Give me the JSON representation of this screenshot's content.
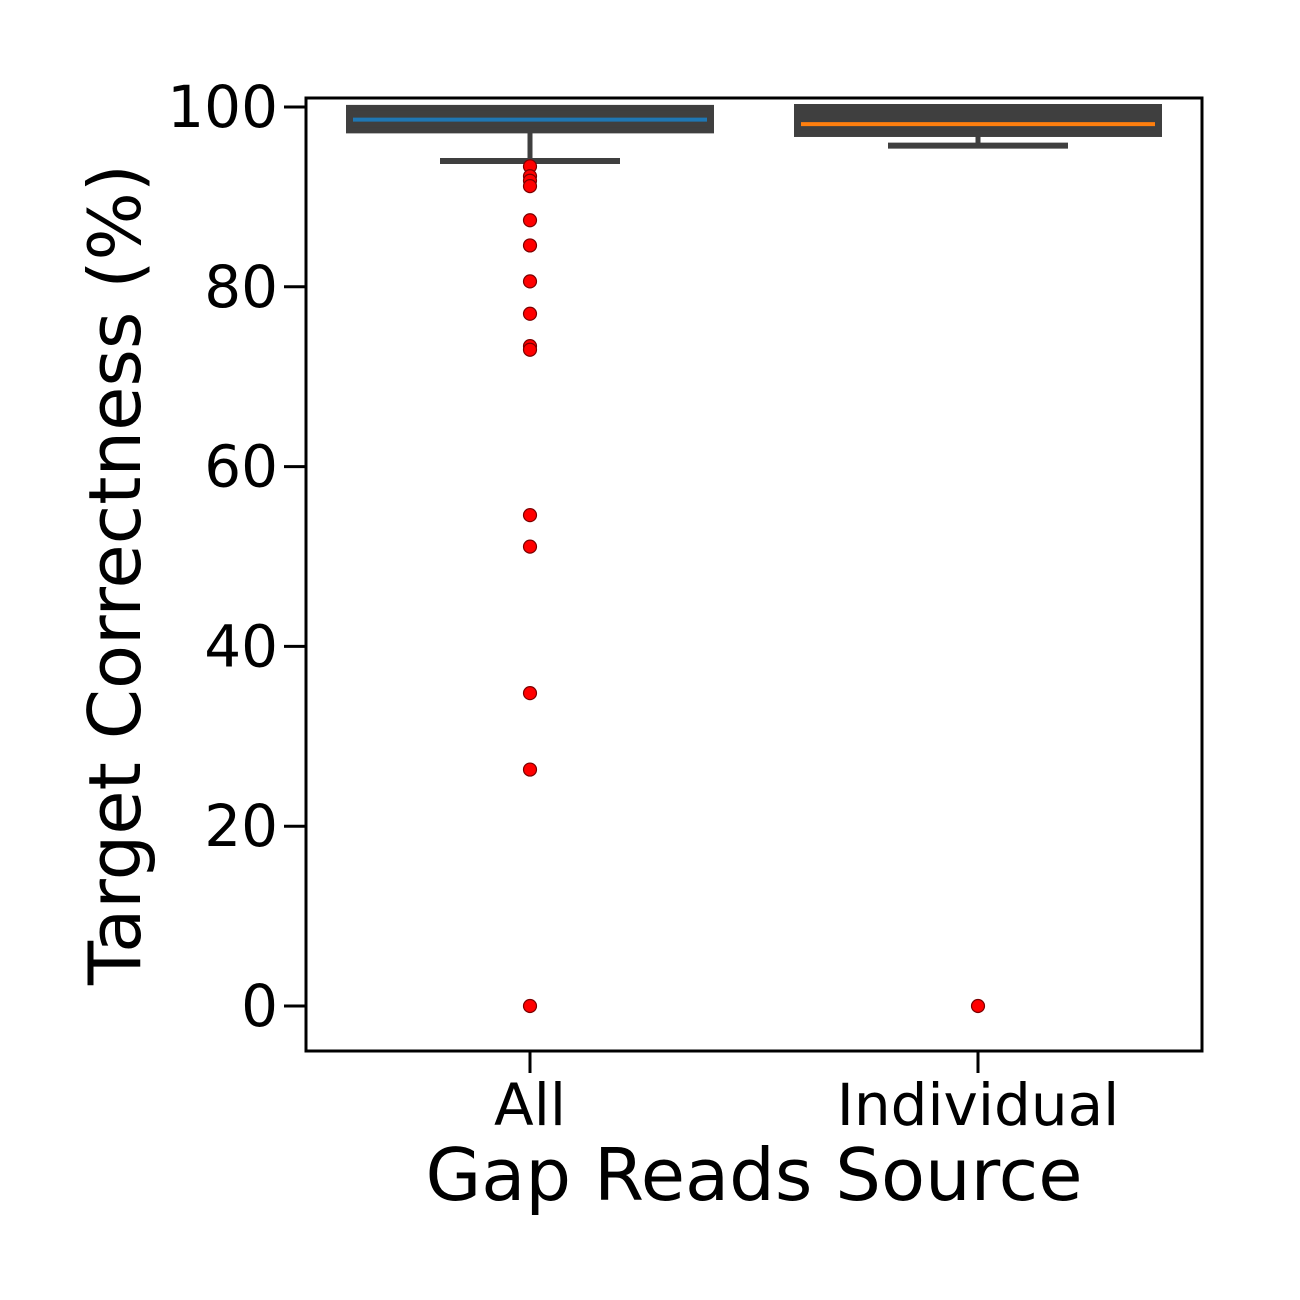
{
  "chart_data": {
    "type": "box",
    "title": "",
    "xlabel": "Gap Reads Source",
    "ylabel": "Target Correctness (%)",
    "ylim": [
      -5,
      101
    ],
    "yticks": [
      0,
      20,
      40,
      60,
      80,
      100
    ],
    "categories": [
      "All",
      "Individual"
    ],
    "boxes": [
      {
        "category": "All",
        "q1": 97.4,
        "median": 98.6,
        "q3": 99.9,
        "whisker_low": 94.0,
        "whisker_high": 100.0,
        "median_color": "#1f77b4",
        "outliers": [
          93.4,
          92.3,
          91.8,
          91.2,
          87.4,
          84.6,
          80.6,
          77.0,
          73.4,
          73.0,
          54.6,
          51.1,
          34.8,
          26.3,
          0.0
        ]
      },
      {
        "category": "Individual",
        "q1": 97.0,
        "median": 98.1,
        "q3": 100.0,
        "whisker_low": 95.7,
        "whisker_high": 100.0,
        "median_color": "#ff7f0e",
        "outliers": [
          0.0
        ]
      }
    ],
    "grid": false,
    "legend": "none"
  },
  "colors": {
    "box_edge": "#3f3f3f",
    "outlier_fill": "#ff0000",
    "axis": "#000000"
  }
}
